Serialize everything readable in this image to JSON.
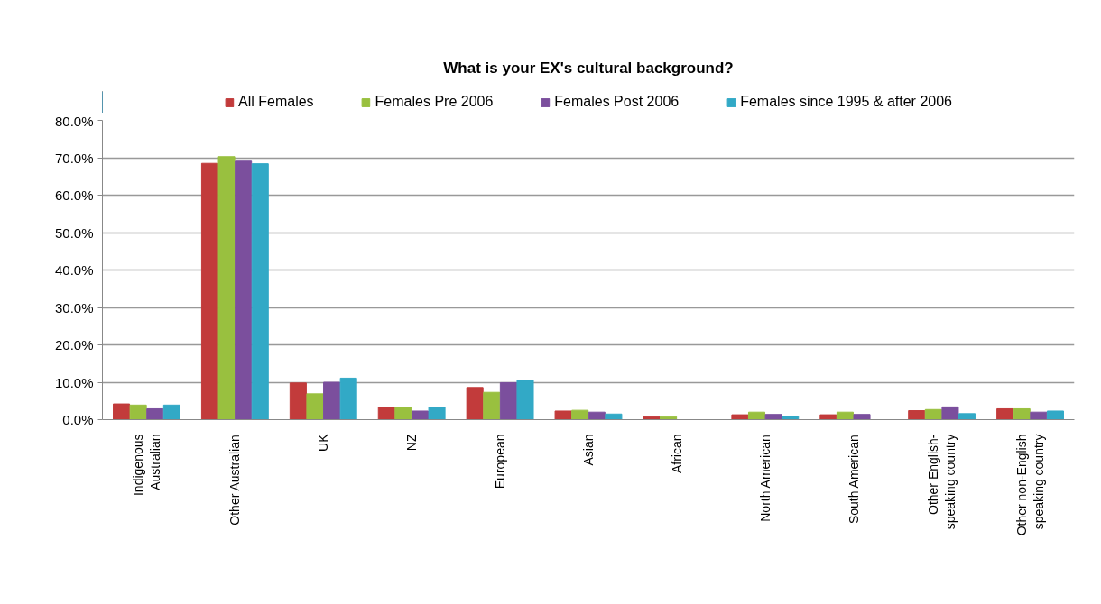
{
  "chart_data": {
    "type": "bar",
    "title": "What is your EX's cultural background?",
    "categories": [
      "Indigenous\nAustralian",
      "Other Australian",
      "UK",
      "NZ",
      "European",
      "Asian",
      "African",
      "North American",
      "South American",
      "Other English-\nspeaking country",
      "Other non-English\nspeaking country"
    ],
    "series": [
      {
        "name": "All Females",
        "color": "#c23b3b",
        "values": [
          4.2,
          68.5,
          9.8,
          3.3,
          8.6,
          2.3,
          0.7,
          1.3,
          1.3,
          2.4,
          2.9
        ]
      },
      {
        "name": "Females Pre 2006",
        "color": "#99c03f",
        "values": [
          3.9,
          70.3,
          6.9,
          3.3,
          7.3,
          2.5,
          0.8,
          2.0,
          2.0,
          2.7,
          2.9
        ]
      },
      {
        "name": "Females Post 2006",
        "color": "#7b4f9d",
        "values": [
          2.9,
          69.1,
          10.0,
          2.3,
          9.9,
          2.0,
          0,
          1.4,
          1.4,
          3.4,
          2.0
        ]
      },
      {
        "name": "Females since 1995 & after 2006",
        "color": "#32a9c6",
        "values": [
          3.9,
          68.4,
          11.1,
          3.3,
          10.5,
          1.5,
          0,
          0.9,
          0,
          1.6,
          2.3
        ]
      }
    ],
    "ylim": [
      0,
      80
    ],
    "yticks": [
      {
        "value": 0,
        "label": "0.0%"
      },
      {
        "value": 10,
        "label": "10.0%"
      },
      {
        "value": 20,
        "label": "20.0%"
      },
      {
        "value": 30,
        "label": "30.0%"
      },
      {
        "value": 40,
        "label": "40.0%"
      },
      {
        "value": 50,
        "label": "50.0%"
      },
      {
        "value": 60,
        "label": "60.0%"
      },
      {
        "value": 70,
        "label": "70.0%"
      },
      {
        "value": 80,
        "label": "80.0%"
      }
    ],
    "grid": "y",
    "legend": "top"
  }
}
